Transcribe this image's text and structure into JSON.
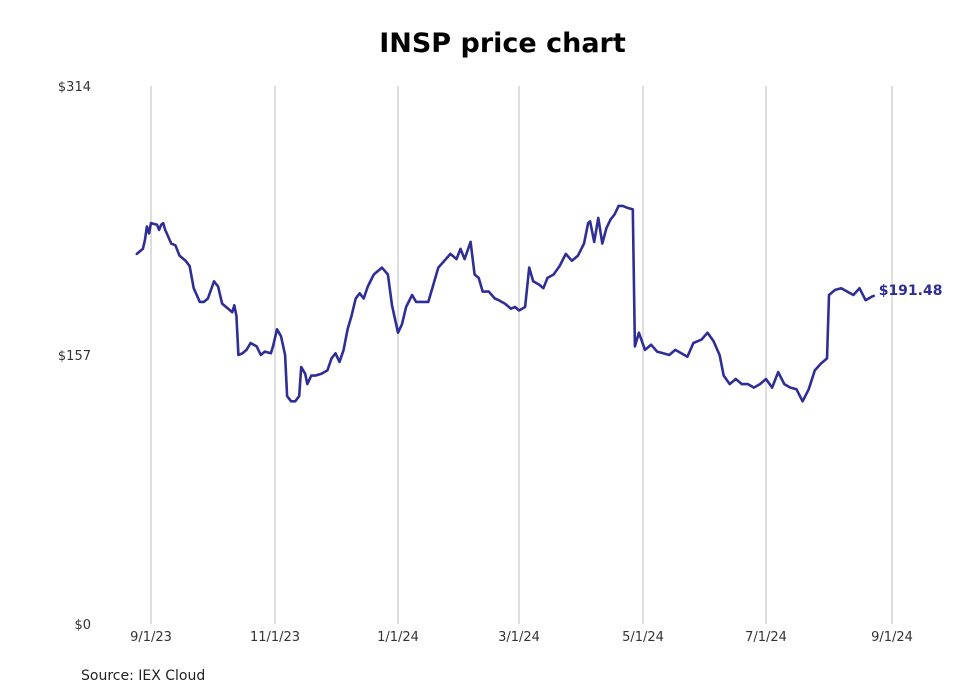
{
  "colors": {
    "line": "#2e2e96",
    "grid": "#bdbdbd",
    "text": "#333333"
  },
  "chart_data": {
    "type": "line",
    "title": "INSP price chart",
    "source": "Source: IEX Cloud",
    "x_ticks": [
      "9/1/23",
      "11/1/23",
      "1/1/24",
      "3/1/24",
      "5/1/24",
      "7/1/24",
      "9/1/24"
    ],
    "y_ticks": [
      "$314",
      "$157",
      "$0"
    ],
    "ylim": [
      0,
      314
    ],
    "xlim": [
      "8/22/23",
      "9/16/24"
    ],
    "grid": "vertical",
    "end_label": "$191.48",
    "series": [
      {
        "points": [
          [
            "2023-08-25",
            216
          ],
          [
            "2023-08-28",
            219
          ],
          [
            "2023-08-29",
            224
          ],
          [
            "2023-08-30",
            232
          ],
          [
            "2023-08-31",
            228
          ],
          [
            "2023-09-01",
            234
          ],
          [
            "2023-09-04",
            233
          ],
          [
            "2023-09-05",
            230
          ],
          [
            "2023-09-06",
            233
          ],
          [
            "2023-09-07",
            234
          ],
          [
            "2023-09-08",
            230
          ],
          [
            "2023-09-11",
            222
          ],
          [
            "2023-09-13",
            221
          ],
          [
            "2023-09-15",
            215
          ],
          [
            "2023-09-18",
            212
          ],
          [
            "2023-09-20",
            209
          ],
          [
            "2023-09-22",
            196
          ],
          [
            "2023-09-25",
            188
          ],
          [
            "2023-09-27",
            188
          ],
          [
            "2023-09-29",
            190
          ],
          [
            "2023-10-02",
            200
          ],
          [
            "2023-10-04",
            197
          ],
          [
            "2023-10-06",
            187
          ],
          [
            "2023-10-09",
            184
          ],
          [
            "2023-10-11",
            182
          ],
          [
            "2023-10-12",
            186
          ],
          [
            "2023-10-13",
            180
          ],
          [
            "2023-10-14",
            157
          ],
          [
            "2023-10-16",
            158
          ],
          [
            "2023-10-18",
            160
          ],
          [
            "2023-10-20",
            164
          ],
          [
            "2023-10-23",
            162
          ],
          [
            "2023-10-25",
            157
          ],
          [
            "2023-10-27",
            159
          ],
          [
            "2023-10-30",
            158
          ],
          [
            "2023-10-31",
            162
          ],
          [
            "2023-11-02",
            172
          ],
          [
            "2023-11-04",
            168
          ],
          [
            "2023-11-06",
            157
          ],
          [
            "2023-11-07",
            133
          ],
          [
            "2023-11-09",
            130
          ],
          [
            "2023-11-11",
            130
          ],
          [
            "2023-11-13",
            133
          ],
          [
            "2023-11-14",
            150
          ],
          [
            "2023-11-16",
            146
          ],
          [
            "2023-11-17",
            140
          ],
          [
            "2023-11-19",
            145
          ],
          [
            "2023-11-21",
            145
          ],
          [
            "2023-11-24",
            146
          ],
          [
            "2023-11-27",
            148
          ],
          [
            "2023-11-29",
            155
          ],
          [
            "2023-12-01",
            158
          ],
          [
            "2023-12-03",
            153
          ],
          [
            "2023-12-05",
            160
          ],
          [
            "2023-12-07",
            172
          ],
          [
            "2023-12-09",
            180
          ],
          [
            "2023-12-11",
            190
          ],
          [
            "2023-12-13",
            193
          ],
          [
            "2023-12-15",
            190
          ],
          [
            "2023-12-17",
            197
          ],
          [
            "2023-12-20",
            204
          ],
          [
            "2023-12-24",
            208
          ],
          [
            "2023-12-27",
            204
          ],
          [
            "2023-12-29",
            186
          ],
          [
            "2024-01-01",
            170
          ],
          [
            "2024-01-03",
            175
          ],
          [
            "2024-01-05",
            185
          ],
          [
            "2024-01-08",
            192
          ],
          [
            "2024-01-10",
            188
          ],
          [
            "2024-01-12",
            188
          ],
          [
            "2024-01-16",
            188
          ],
          [
            "2024-01-18",
            196
          ],
          [
            "2024-01-21",
            208
          ],
          [
            "2024-01-24",
            212
          ],
          [
            "2024-01-27",
            216
          ],
          [
            "2024-01-30",
            213
          ],
          [
            "2024-02-01",
            219
          ],
          [
            "2024-02-03",
            213
          ],
          [
            "2024-02-06",
            223
          ],
          [
            "2024-02-08",
            204
          ],
          [
            "2024-02-10",
            202
          ],
          [
            "2024-02-12",
            194
          ],
          [
            "2024-02-15",
            194
          ],
          [
            "2024-02-18",
            190
          ],
          [
            "2024-02-20",
            189
          ],
          [
            "2024-02-23",
            187
          ],
          [
            "2024-02-26",
            184
          ],
          [
            "2024-02-28",
            185
          ],
          [
            "2024-03-01",
            183
          ],
          [
            "2024-03-04",
            185
          ],
          [
            "2024-03-06",
            208
          ],
          [
            "2024-03-08",
            200
          ],
          [
            "2024-03-11",
            198
          ],
          [
            "2024-03-13",
            196
          ],
          [
            "2024-03-15",
            202
          ],
          [
            "2024-03-18",
            204
          ],
          [
            "2024-03-21",
            209
          ],
          [
            "2024-03-24",
            216
          ],
          [
            "2024-03-27",
            212
          ],
          [
            "2024-03-30",
            215
          ],
          [
            "2024-04-02",
            222
          ],
          [
            "2024-04-04",
            234
          ],
          [
            "2024-04-05",
            235
          ],
          [
            "2024-04-07",
            223
          ],
          [
            "2024-04-09",
            237
          ],
          [
            "2024-04-11",
            222
          ],
          [
            "2024-04-13",
            231
          ],
          [
            "2024-04-15",
            236
          ],
          [
            "2024-04-17",
            239
          ],
          [
            "2024-04-19",
            244
          ],
          [
            "2024-04-21",
            244
          ],
          [
            "2024-04-23",
            243
          ],
          [
            "2024-04-26",
            242
          ],
          [
            "2024-04-27",
            162
          ],
          [
            "2024-04-29",
            170
          ],
          [
            "2024-05-02",
            160
          ],
          [
            "2024-05-05",
            163
          ],
          [
            "2024-05-08",
            159
          ],
          [
            "2024-05-11",
            158
          ],
          [
            "2024-05-14",
            157
          ],
          [
            "2024-05-17",
            160
          ],
          [
            "2024-05-20",
            158
          ],
          [
            "2024-05-23",
            156
          ],
          [
            "2024-05-26",
            164
          ],
          [
            "2024-05-30",
            166
          ],
          [
            "2024-06-02",
            170
          ],
          [
            "2024-06-05",
            165
          ],
          [
            "2024-06-08",
            157
          ],
          [
            "2024-06-10",
            145
          ],
          [
            "2024-06-13",
            140
          ],
          [
            "2024-06-16",
            143
          ],
          [
            "2024-06-19",
            140
          ],
          [
            "2024-06-22",
            140
          ],
          [
            "2024-06-25",
            138
          ],
          [
            "2024-06-28",
            140
          ],
          [
            "2024-07-01",
            143
          ],
          [
            "2024-07-04",
            138
          ],
          [
            "2024-07-07",
            147
          ],
          [
            "2024-07-10",
            140
          ],
          [
            "2024-07-13",
            138
          ],
          [
            "2024-07-16",
            137
          ],
          [
            "2024-07-19",
            130
          ],
          [
            "2024-07-22",
            137
          ],
          [
            "2024-07-25",
            148
          ],
          [
            "2024-07-28",
            152
          ],
          [
            "2024-07-31",
            155
          ],
          [
            "2024-08-01",
            192
          ],
          [
            "2024-08-04",
            195
          ],
          [
            "2024-08-07",
            196
          ],
          [
            "2024-08-10",
            194
          ],
          [
            "2024-08-13",
            192
          ],
          [
            "2024-08-16",
            196
          ],
          [
            "2024-08-19",
            189
          ],
          [
            "2024-08-22",
            191
          ],
          [
            "2024-08-23",
            191.48
          ]
        ]
      }
    ]
  }
}
